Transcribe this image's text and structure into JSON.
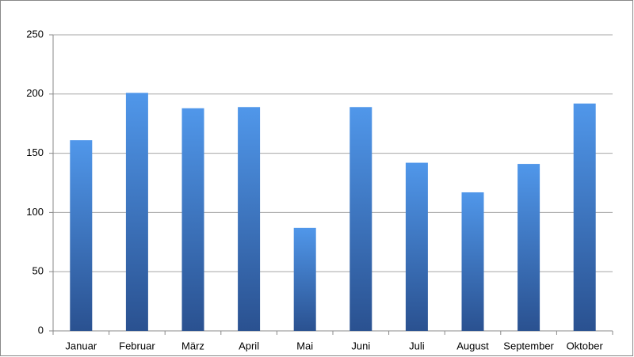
{
  "chart_data": {
    "type": "bar",
    "categories": [
      "Januar",
      "Februar",
      "März",
      "April",
      "Mai",
      "Juni",
      "Juli",
      "August",
      "September",
      "Oktober"
    ],
    "values": [
      161,
      201,
      188,
      189,
      87,
      189,
      142,
      117,
      141,
      192
    ],
    "color": "#5097ea",
    "color_end": "#2a5190",
    "ylim": [
      0,
      250
    ],
    "yticks": [
      0,
      50,
      100,
      150,
      200,
      250
    ],
    "grid": true
  }
}
